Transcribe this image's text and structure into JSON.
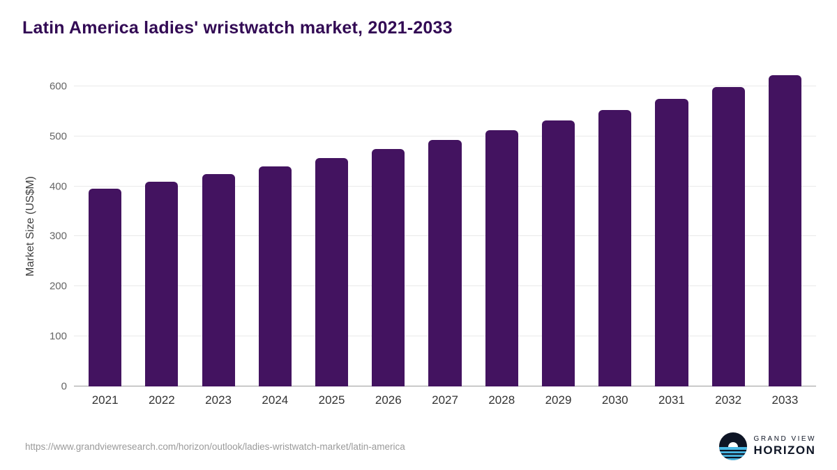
{
  "chart_data": {
    "type": "bar",
    "title": "Latin America ladies' wristwatch market, 2021-2033",
    "ylabel": "Market Size (US$M)",
    "xlabel": "",
    "categories": [
      "2021",
      "2022",
      "2023",
      "2024",
      "2025",
      "2026",
      "2027",
      "2028",
      "2029",
      "2030",
      "2031",
      "2032",
      "2033"
    ],
    "values": [
      395,
      409,
      424,
      440,
      457,
      475,
      493,
      512,
      532,
      553,
      574,
      598,
      622
    ],
    "yticks": [
      0,
      100,
      200,
      300,
      400,
      500,
      600
    ],
    "axis_max": 640,
    "ylim": [
      0,
      600
    ],
    "grid": "horizontal",
    "legend": "none",
    "bar_color": "#431360"
  },
  "colors": {
    "bar": "#431360",
    "title": "#320a54",
    "logo_blue": "#49b8e5",
    "logo_dark": "#0e1525"
  },
  "footer": {
    "source": "https://www.grandviewresearch.com/horizon/outlook/ladies-wristwatch-market/latin-america",
    "logo": {
      "line1": "GRAND VIEW",
      "line2": "HORIZON"
    }
  }
}
